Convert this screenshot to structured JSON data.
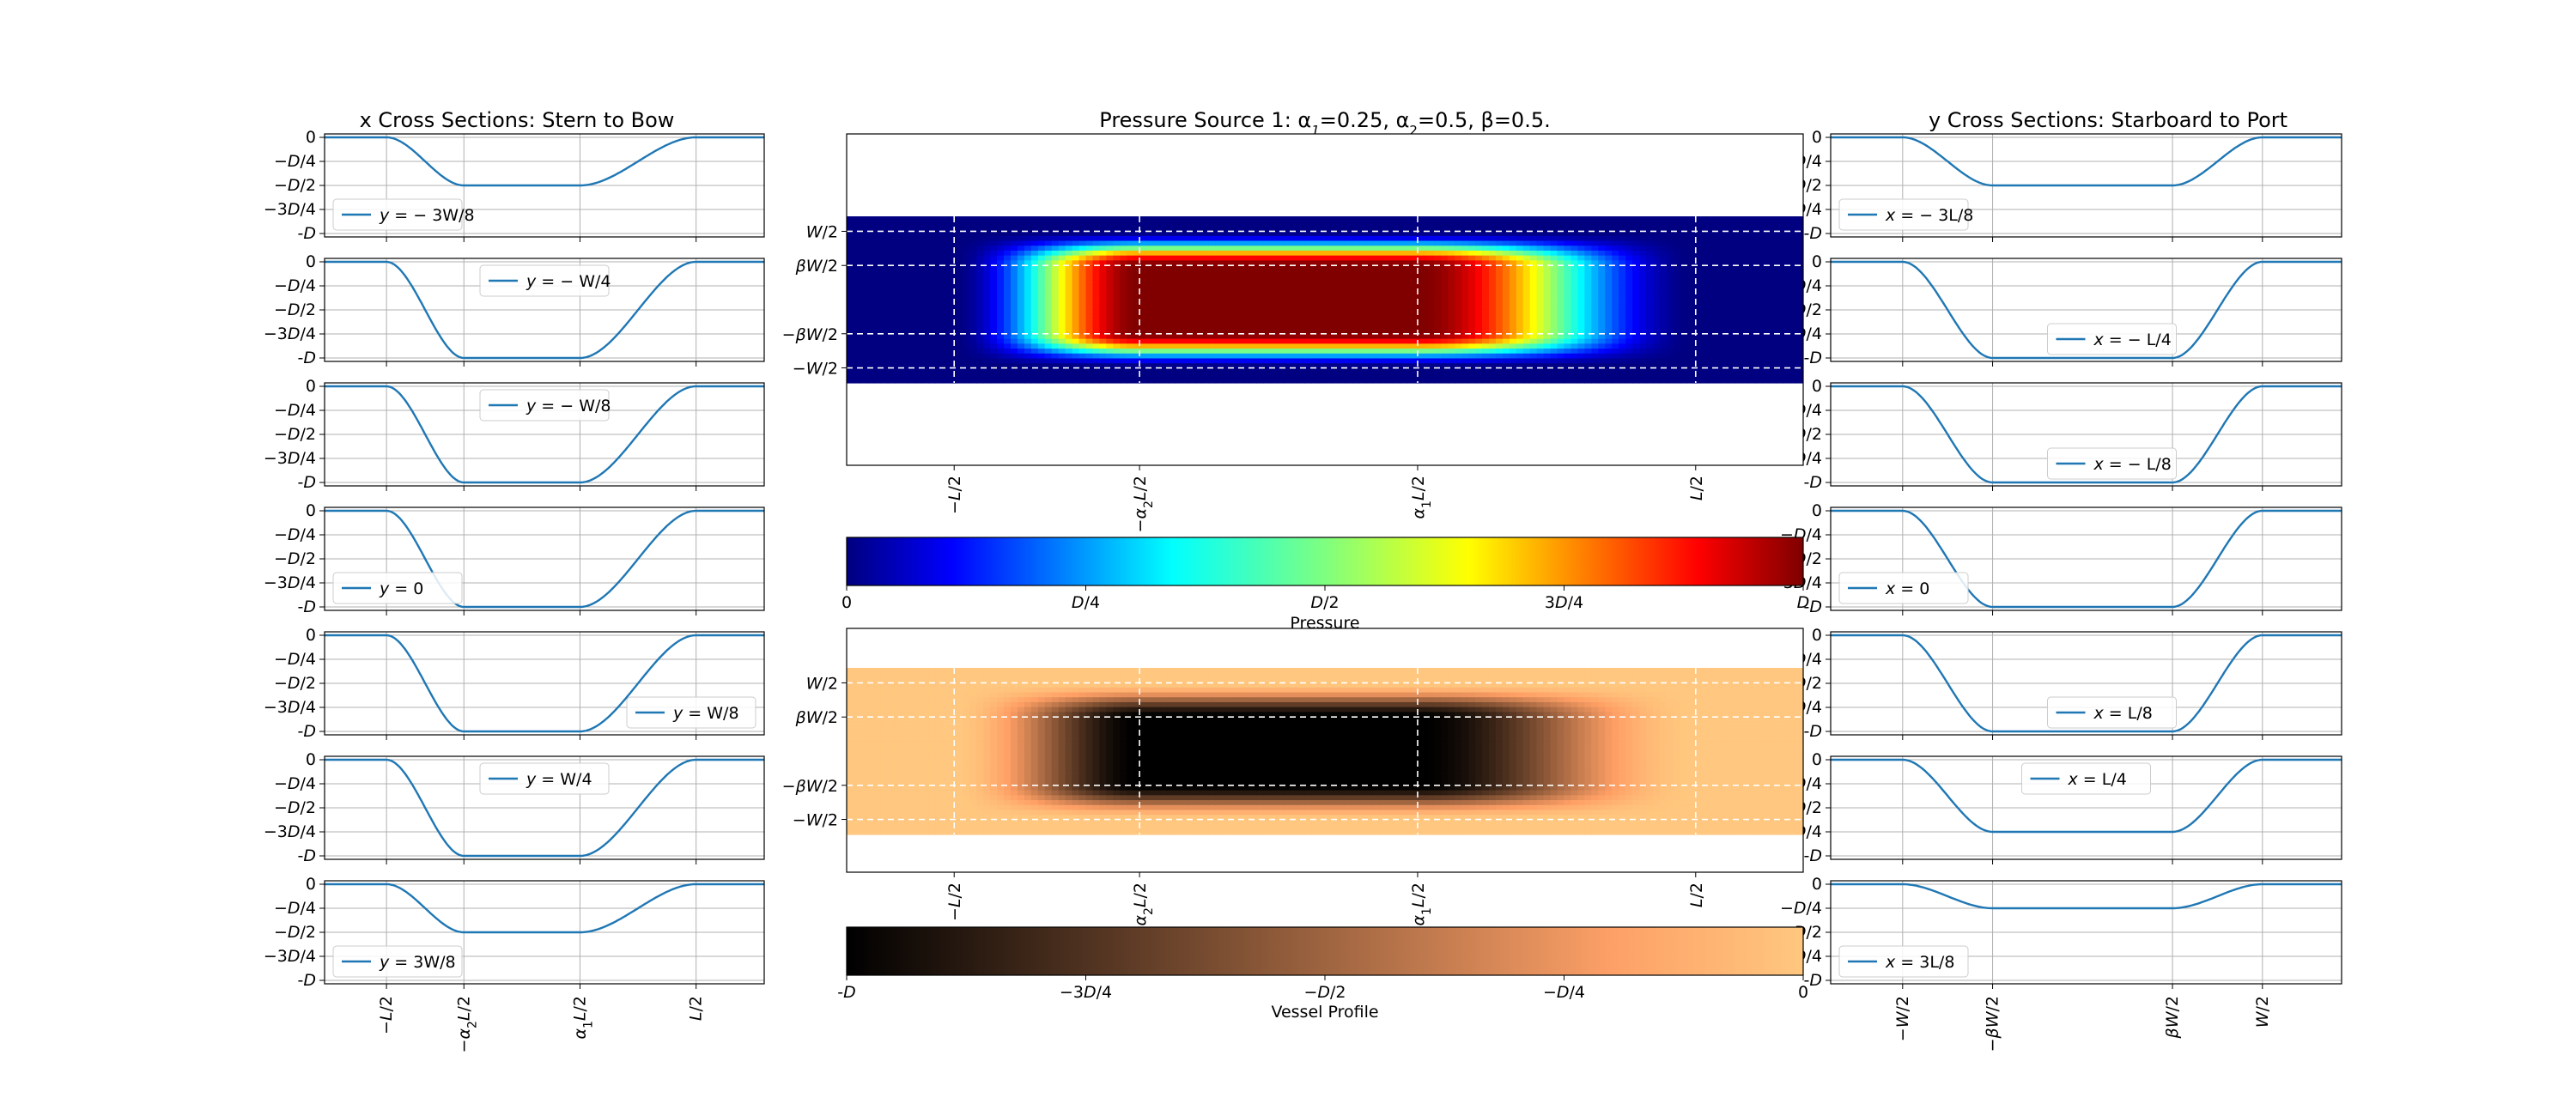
{
  "palette": {
    "line": "#1f77b4",
    "grid": "#b0b0b0",
    "jet_cmap": "jet",
    "profile_cmap": "copper"
  },
  "panels": {
    "x_sections": {
      "title": "x Cross Sections: Stern to Bow",
      "yticks": [
        "0",
        "−D/4",
        "−D/2",
        "−3D/4",
        "-D"
      ],
      "xticks": [
        "−L/2",
        "−α2L/2",
        "α1L/2",
        "L/2"
      ],
      "xtick_values": [
        -0.5,
        -0.25,
        0.125,
        0.5
      ],
      "xrange": [
        -0.7,
        0.72
      ],
      "legend_prefix": "y",
      "series": [
        {
          "label": "= − 3W/8",
          "depth": 0.5,
          "legend_pos": "bottom-left"
        },
        {
          "label": "= − W/4",
          "depth": 1.0,
          "legend_pos": "top-center"
        },
        {
          "label": "= − W/8",
          "depth": 1.0,
          "legend_pos": "top-center"
        },
        {
          "label": "= 0",
          "depth": 1.0,
          "legend_pos": "bottom-left"
        },
        {
          "label": "= W/8",
          "depth": 1.0,
          "legend_pos": "bottom-right"
        },
        {
          "label": "= W/4",
          "depth": 1.0,
          "legend_pos": "top-center"
        },
        {
          "label": "= 3W/8",
          "depth": 0.5,
          "legend_pos": "bottom-left"
        }
      ]
    },
    "y_sections": {
      "title": "y Cross Sections: Starboard to Port",
      "yticks": [
        "0",
        "−D/4",
        "−D/2",
        "−3D/4",
        "-D"
      ],
      "xticks": [
        "−W/2",
        "−βW/2",
        "βW/2",
        "W/2"
      ],
      "xtick_values": [
        -0.5,
        -0.25,
        0.25,
        0.5
      ],
      "xrange": [
        -0.7,
        0.72
      ],
      "legend_prefix": "x",
      "series": [
        {
          "label": "= − 3L/8",
          "depth": 0.5,
          "legend_pos": "bottom-left"
        },
        {
          "label": "= − L/4",
          "depth": 1.0,
          "legend_pos": "bottom-center"
        },
        {
          "label": "= − L/8",
          "depth": 1.0,
          "legend_pos": "bottom-center"
        },
        {
          "label": "= 0",
          "depth": 1.0,
          "legend_pos": "bottom-left"
        },
        {
          "label": "= L/8",
          "depth": 1.0,
          "legend_pos": "bottom-center"
        },
        {
          "label": "= L/4",
          "depth": 0.75,
          "legend_pos": "top-center"
        },
        {
          "label": "= 3L/8",
          "depth": 0.25,
          "legend_pos": "bottom-left"
        }
      ]
    },
    "pressure": {
      "title": "Pressure Source 1: α1=0.25, α2=0.5, β=0.5.",
      "yticks": [
        "W/2",
        "βW/2",
        "−βW/2",
        "−W/2"
      ],
      "xticks": [
        "−L/2",
        "−α2L/2",
        "α1L/2",
        "L/2"
      ],
      "colorbar": {
        "label": "Pressure",
        "ticks": [
          "0",
          "D/4",
          "D/2",
          "3D/4",
          "D"
        ]
      }
    },
    "profile": {
      "yticks": [
        "W/2",
        "βW/2",
        "−βW/2",
        "−W/2"
      ],
      "xticks": [
        "−L/2",
        "−α2L/2",
        "α1L/2",
        "L/2"
      ],
      "colorbar": {
        "label": "Vessel Profile",
        "ticks": [
          "-D",
          "−3D/4",
          "−D/2",
          "−D/4",
          "0"
        ]
      }
    }
  },
  "chart_data": [
    {
      "type": "line",
      "title": "x Cross Sections: Stern to Bow",
      "xlabel": "",
      "ylabel": "",
      "x_ticks": [
        "−L/2",
        "−α2L/2",
        "α1L/2",
        "L/2"
      ],
      "y_ticks": [
        "0",
        "−D/4",
        "−D/2",
        "−3D/4",
        "-D"
      ],
      "ylim": [
        -1,
        0
      ],
      "series": [
        {
          "name": "y = − 3W/8",
          "x": [
            -0.7,
            -0.5,
            -0.25,
            0.125,
            0.5,
            0.72
          ],
          "y": [
            0,
            0,
            -0.5,
            -0.5,
            0,
            0
          ]
        },
        {
          "name": "y = − W/4",
          "x": [
            -0.7,
            -0.5,
            -0.25,
            0.125,
            0.5,
            0.72
          ],
          "y": [
            0,
            0,
            -1,
            -1,
            0,
            0
          ]
        },
        {
          "name": "y = − W/8",
          "x": [
            -0.7,
            -0.5,
            -0.25,
            0.125,
            0.5,
            0.72
          ],
          "y": [
            0,
            0,
            -1,
            -1,
            0,
            0
          ]
        },
        {
          "name": "y = 0",
          "x": [
            -0.7,
            -0.5,
            -0.25,
            0.125,
            0.5,
            0.72
          ],
          "y": [
            0,
            0,
            -1,
            -1,
            0,
            0
          ]
        },
        {
          "name": "y = W/8",
          "x": [
            -0.7,
            -0.5,
            -0.25,
            0.125,
            0.5,
            0.72
          ],
          "y": [
            0,
            0,
            -1,
            -1,
            0,
            0
          ]
        },
        {
          "name": "y = W/4",
          "x": [
            -0.7,
            -0.5,
            -0.25,
            0.125,
            0.5,
            0.72
          ],
          "y": [
            0,
            0,
            -1,
            -1,
            0,
            0
          ]
        },
        {
          "name": "y = 3W/8",
          "x": [
            -0.7,
            -0.5,
            -0.25,
            0.125,
            0.5,
            0.72
          ],
          "y": [
            0,
            0,
            -0.5,
            -0.5,
            0,
            0
          ]
        }
      ]
    },
    {
      "type": "line",
      "title": "y Cross Sections: Starboard to Port",
      "xlabel": "",
      "ylabel": "",
      "x_ticks": [
        "−W/2",
        "−βW/2",
        "βW/2",
        "W/2"
      ],
      "y_ticks": [
        "0",
        "−D/4",
        "−D/2",
        "−3D/4",
        "-D"
      ],
      "ylim": [
        -1,
        0
      ],
      "series": [
        {
          "name": "x = − 3L/8",
          "x": [
            -0.7,
            -0.5,
            -0.25,
            0.25,
            0.5,
            0.72
          ],
          "y": [
            0,
            0,
            -0.5,
            -0.5,
            0,
            0
          ]
        },
        {
          "name": "x = − L/4",
          "x": [
            -0.7,
            -0.5,
            -0.25,
            0.25,
            0.5,
            0.72
          ],
          "y": [
            0,
            0,
            -1,
            -1,
            0,
            0
          ]
        },
        {
          "name": "x = − L/8",
          "x": [
            -0.7,
            -0.5,
            -0.25,
            0.25,
            0.5,
            0.72
          ],
          "y": [
            0,
            0,
            -1,
            -1,
            0,
            0
          ]
        },
        {
          "name": "x = 0",
          "x": [
            -0.7,
            -0.5,
            -0.25,
            0.25,
            0.5,
            0.72
          ],
          "y": [
            0,
            0,
            -1,
            -1,
            0,
            0
          ]
        },
        {
          "name": "x = L/8",
          "x": [
            -0.7,
            -0.5,
            -0.25,
            0.25,
            0.5,
            0.72
          ],
          "y": [
            0,
            0,
            -1,
            -1,
            0,
            0
          ]
        },
        {
          "name": "x = L/4",
          "x": [
            -0.7,
            -0.5,
            -0.25,
            0.25,
            0.5,
            0.72
          ],
          "y": [
            0,
            0,
            -0.75,
            -0.75,
            0,
            0
          ]
        },
        {
          "name": "x = 3L/8",
          "x": [
            -0.7,
            -0.5,
            -0.25,
            0.25,
            0.5,
            0.72
          ],
          "y": [
            0,
            0,
            -0.25,
            -0.25,
            0,
            0
          ]
        }
      ]
    },
    {
      "type": "heatmap",
      "title": "Pressure Source 1: α1=0.25, α2=0.5, β=0.5.",
      "colorbar_label": "Pressure",
      "colorbar_range": [
        0,
        1
      ],
      "x_ticks": [
        "−L/2",
        "−α2L/2",
        "α1L/2",
        "L/2"
      ],
      "y_ticks": [
        "W/2",
        "βW/2",
        "−βW/2",
        "−W/2"
      ],
      "plateau": {
        "x": [
          -0.25,
          0.125
        ],
        "y": [
          -0.25,
          0.25
        ],
        "value": 1
      },
      "support": {
        "x": [
          -0.5,
          0.5
        ],
        "y": [
          -0.5,
          0.5
        ]
      }
    },
    {
      "type": "heatmap",
      "title": "",
      "colorbar_label": "Vessel Profile",
      "colorbar_range": [
        -1,
        0
      ],
      "x_ticks": [
        "−L/2",
        "−α2L/2",
        "α1L/2",
        "L/2"
      ],
      "y_ticks": [
        "W/2",
        "βW/2",
        "−βW/2",
        "−W/2"
      ],
      "plateau": {
        "x": [
          -0.25,
          0.125
        ],
        "y": [
          -0.25,
          0.25
        ],
        "value": -1
      },
      "support": {
        "x": [
          -0.5,
          0.5
        ],
        "y": [
          -0.5,
          0.5
        ]
      }
    }
  ]
}
